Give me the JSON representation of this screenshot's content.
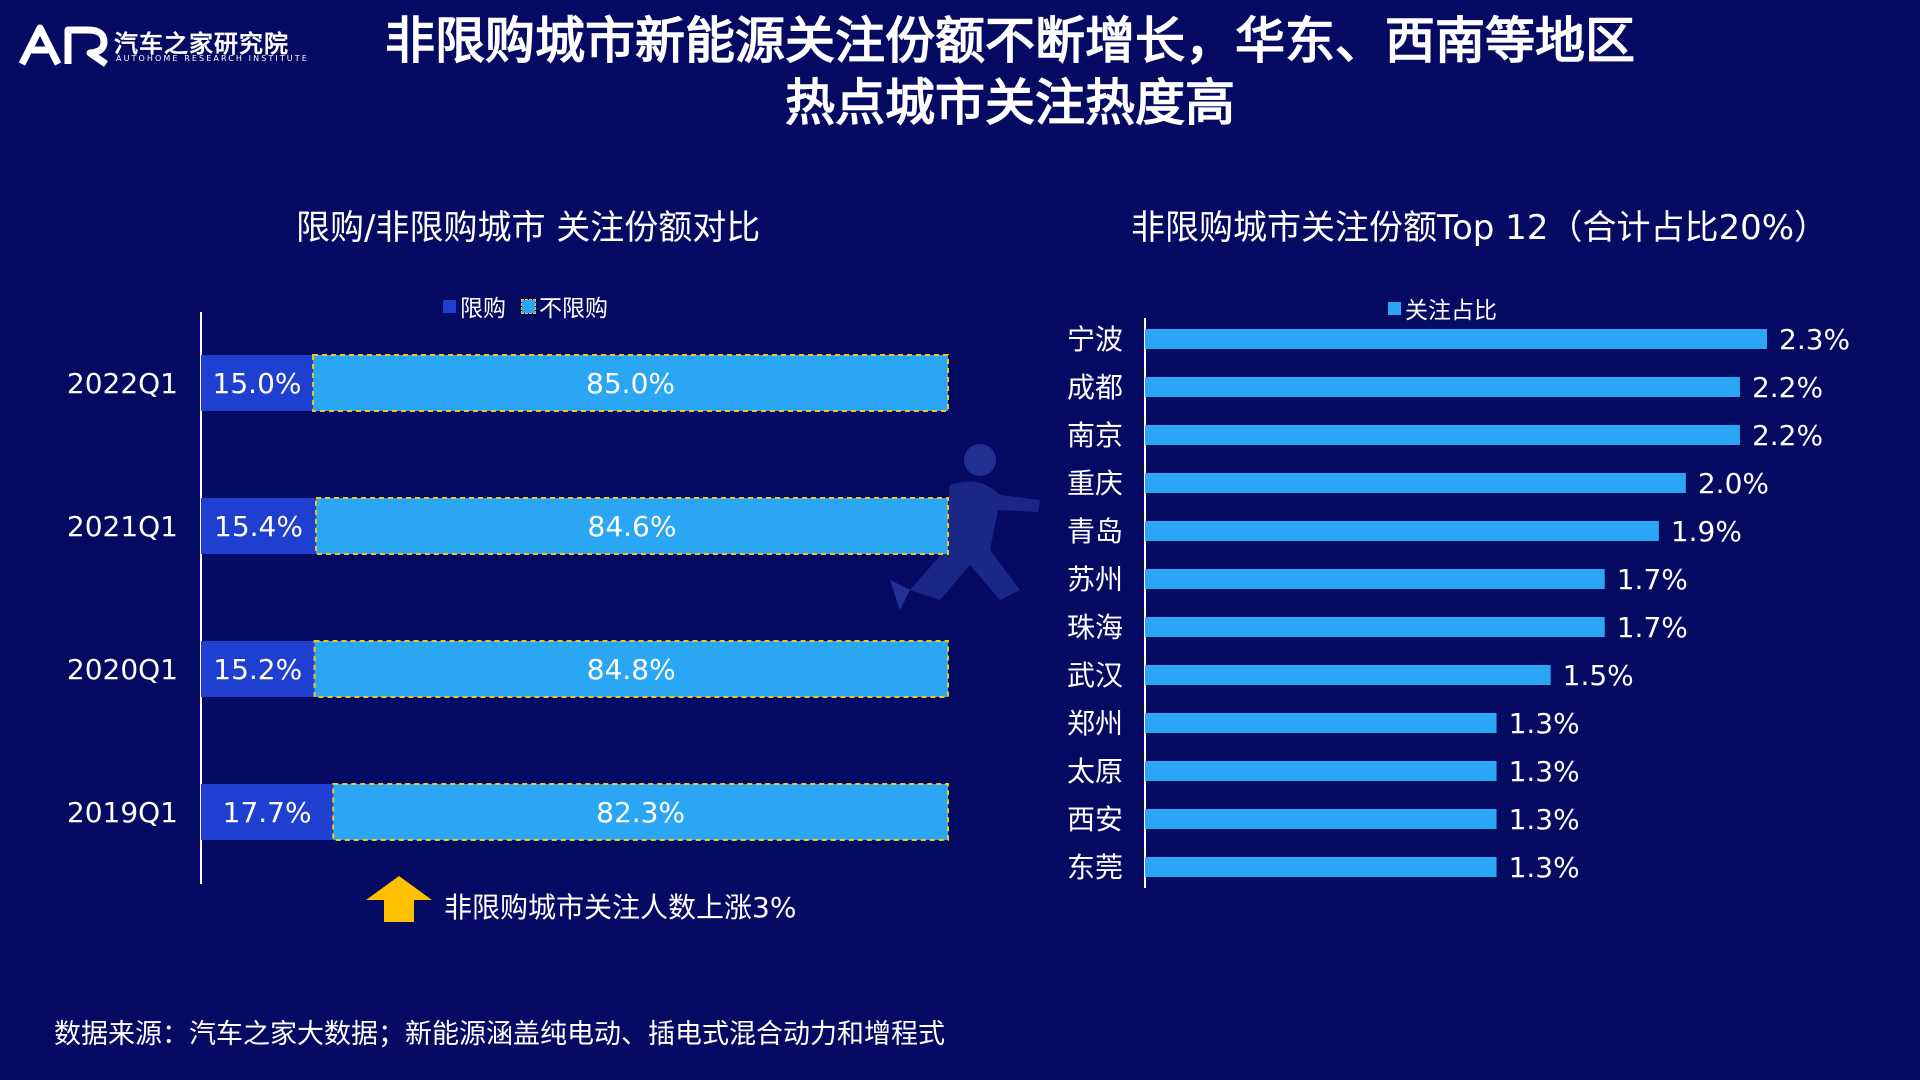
{
  "logo": {
    "icon": "autohome-ar-logo",
    "cn": "汽车之家研究院",
    "en": "AUTOHOME RESEARCH INSTITUTE"
  },
  "title": {
    "line1": "非限购城市新能源关注份额不断增长，华东、西南等地区",
    "line2": "热点城市关注热度高"
  },
  "colors": {
    "background": "#050a63",
    "restricted": "#1f3fd1",
    "unrestricted": "#2aa6f5",
    "dashed_border": "#f5c518",
    "top12_bar": "#2aa6f5",
    "arrow": "#ffc000",
    "axis": "#ffffff"
  },
  "left_chart": {
    "title": "限购/非限购城市 关注份额对比",
    "legend": {
      "restricted": "限购",
      "unrestricted": "不限购"
    }
  },
  "right_chart": {
    "title": "非限购城市关注份额Top 12（合计占比20%）",
    "legend": "关注占比"
  },
  "note": {
    "icon": "up-arrow-icon",
    "text": "非限购城市关注人数上涨3%"
  },
  "source": "数据来源：汽车之家大数据；新能源涵盖纯电动、插电式混合动力和增程式",
  "chart_data": [
    {
      "type": "bar",
      "orientation": "horizontal",
      "stacked": true,
      "title": "限购/非限购城市 关注份额对比",
      "categories": [
        "2022Q1",
        "2021Q1",
        "2020Q1",
        "2019Q1"
      ],
      "series": [
        {
          "name": "限购",
          "values": [
            15.0,
            15.4,
            15.2,
            17.7
          ],
          "labels": [
            "15.0%",
            "15.4%",
            "15.2%",
            "17.7%"
          ]
        },
        {
          "name": "不限购",
          "values": [
            85.0,
            84.6,
            84.8,
            82.3
          ],
          "labels": [
            "85.0%",
            "84.6%",
            "84.8%",
            "82.3%"
          ]
        }
      ],
      "xlim": [
        0,
        100
      ],
      "legend_position": "top",
      "grid": false
    },
    {
      "type": "bar",
      "orientation": "horizontal",
      "title": "非限购城市关注份额Top 12（合计占比20%）",
      "categories": [
        "宁波",
        "成都",
        "南京",
        "重庆",
        "青岛",
        "苏州",
        "珠海",
        "武汉",
        "郑州",
        "太原",
        "西安",
        "东莞"
      ],
      "series": [
        {
          "name": "关注占比",
          "values": [
            2.3,
            2.2,
            2.2,
            2.0,
            1.9,
            1.7,
            1.7,
            1.5,
            1.3,
            1.3,
            1.3,
            1.3
          ],
          "labels": [
            "2.3%",
            "2.2%",
            "2.2%",
            "2.0%",
            "1.9%",
            "1.7%",
            "1.7%",
            "1.5%",
            "1.3%",
            "1.3%",
            "1.3%",
            "1.3%"
          ]
        }
      ],
      "xlim": [
        0,
        2.3
      ],
      "legend_position": "top",
      "grid": false
    }
  ]
}
